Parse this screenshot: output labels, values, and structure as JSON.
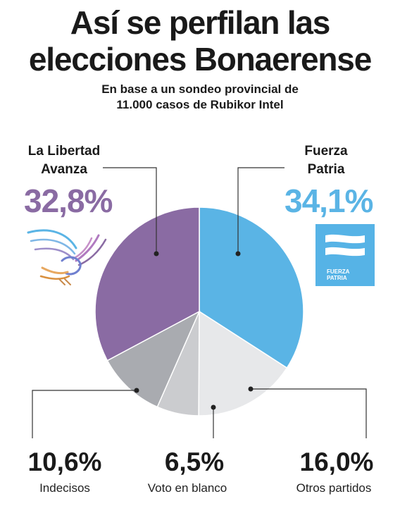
{
  "chart_data": {
    "type": "pie",
    "title": "Así se perfilan las elecciones Bonaerense",
    "subtitle_line1": "En base a un sondeo provincial de",
    "subtitle_line2": "11.000 casos de Rubikor Intel",
    "slices": [
      {
        "name": "Fuerza Patria",
        "value": 34.1,
        "label": "34,1%",
        "color": "#5ab4e5"
      },
      {
        "name": "Otros partidos",
        "value": 16.0,
        "label": "16,0%",
        "color": "#e7e8ea"
      },
      {
        "name": "Voto en blanco",
        "value": 6.5,
        "label": "6,5%",
        "color": "#cbcccf"
      },
      {
        "name": "Indecisos",
        "value": 10.6,
        "label": "10,6%",
        "color": "#a9abb0"
      },
      {
        "name": "La Libertad Avanza",
        "value": 32.8,
        "label": "32,8%",
        "color": "#8a6ba3"
      }
    ]
  },
  "title_line1": "Así se perfilan las",
  "title_line2": "elecciones Bonaerense",
  "lla": {
    "name_line1": "La Libertad",
    "name_line2": "Avanza",
    "pct": "32,8%",
    "color": "#8a6ba3"
  },
  "fp": {
    "name_line1": "Fuerza",
    "name_line2": "Patria",
    "pct": "34,1%",
    "color": "#5ab4e5",
    "logo_line1": "FUERZA",
    "logo_line2": "PATRIA"
  },
  "indecisos": {
    "pct": "10,6%",
    "label": "Indecisos"
  },
  "blanco": {
    "pct": "6,5%",
    "label": "Voto en blanco"
  },
  "otros": {
    "pct": "16,0%",
    "label": "Otros partidos"
  },
  "icons": {
    "lla_logo": "eagle-icon",
    "fp_logo": "flag-stripes-icon"
  }
}
